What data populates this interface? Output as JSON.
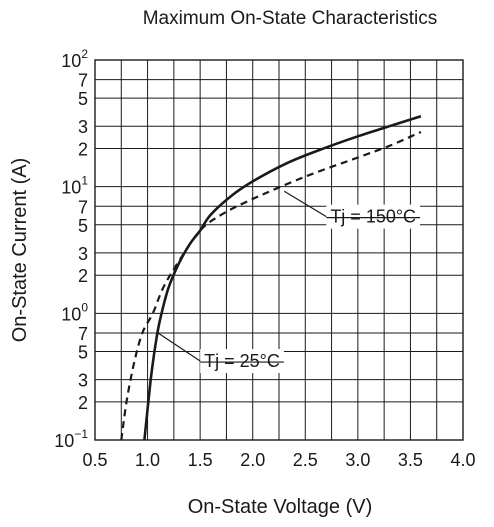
{
  "chart_data": {
    "type": "line",
    "title": "Maximum On-State Characteristics",
    "xlabel": "On-State Voltage  (V)",
    "ylabel": "On-State Current  (A)",
    "x_scale": "linear",
    "y_scale": "log",
    "xlim": [
      0.5,
      4.0
    ],
    "ylim": [
      0.1,
      100
    ],
    "grid": true,
    "x_ticks": [
      "0.5",
      "1.0",
      "1.5",
      "2.0",
      "2.5",
      "3.0",
      "3.5",
      "4.0"
    ],
    "y_ticks": [
      {
        "value": 0.1,
        "base": "10",
        "exp": "−1"
      },
      {
        "value": 0.2,
        "label": "2"
      },
      {
        "value": 0.3,
        "label": "3"
      },
      {
        "value": 0.5,
        "label": "5"
      },
      {
        "value": 0.7,
        "label": "7"
      },
      {
        "value": 1,
        "base": "10",
        "exp": "0"
      },
      {
        "value": 2,
        "label": "2"
      },
      {
        "value": 3,
        "label": "3"
      },
      {
        "value": 5,
        "label": "5"
      },
      {
        "value": 7,
        "label": "7"
      },
      {
        "value": 10,
        "base": "10",
        "exp": "1"
      },
      {
        "value": 20,
        "label": "2"
      },
      {
        "value": 30,
        "label": "3"
      },
      {
        "value": 50,
        "label": "5"
      },
      {
        "value": 70,
        "label": "7"
      },
      {
        "value": 100,
        "base": "10",
        "exp": "2"
      }
    ],
    "series": [
      {
        "name": "Tj = 25°C",
        "style": "solid",
        "color": "#1a1a1a",
        "points": [
          [
            0.97,
            0.1
          ],
          [
            1.03,
            0.3
          ],
          [
            1.08,
            0.6
          ],
          [
            1.12,
            0.9
          ],
          [
            1.2,
            1.6
          ],
          [
            1.3,
            2.5
          ],
          [
            1.4,
            3.5
          ],
          [
            1.5,
            4.5
          ],
          [
            1.6,
            6.0
          ],
          [
            1.8,
            8.5
          ],
          [
            2.0,
            11.0
          ],
          [
            2.3,
            15.0
          ],
          [
            2.6,
            19.0
          ],
          [
            3.0,
            25.0
          ],
          [
            3.3,
            30.0
          ],
          [
            3.6,
            36.0
          ]
        ]
      },
      {
        "name": "Tj = 150°C",
        "style": "dashed",
        "color": "#1a1a1a",
        "points": [
          [
            0.75,
            0.1
          ],
          [
            0.8,
            0.2
          ],
          [
            0.87,
            0.4
          ],
          [
            0.95,
            0.7
          ],
          [
            1.05,
            1.0
          ],
          [
            1.15,
            1.6
          ],
          [
            1.3,
            2.6
          ],
          [
            1.5,
            4.5
          ],
          [
            1.7,
            6.0
          ],
          [
            2.0,
            8.0
          ],
          [
            2.5,
            12.0
          ],
          [
            3.0,
            17.0
          ],
          [
            3.3,
            21.0
          ],
          [
            3.6,
            27.0
          ]
        ]
      }
    ],
    "annotations": [
      {
        "text": "Tj = 150°C",
        "series": 1,
        "at": [
          2.3,
          9.2
        ],
        "label_at": [
          2.7,
          5.8
        ]
      },
      {
        "text": "Tj = 25°C",
        "series": 0,
        "at": [
          1.1,
          0.7
        ],
        "label_at": [
          1.5,
          0.42
        ]
      }
    ]
  }
}
